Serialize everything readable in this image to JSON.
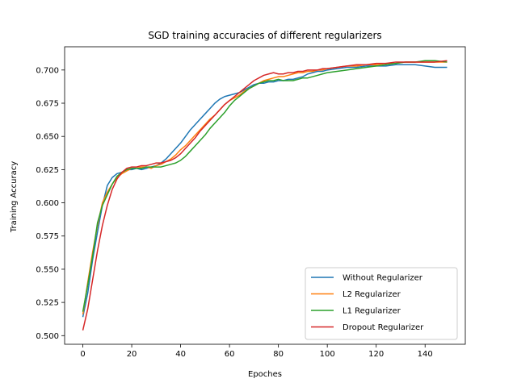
{
  "chart_data": {
    "type": "line",
    "title": "SGD training accuracies of different regularizers",
    "xlabel": "Epoches",
    "ylabel": "Training Accuracy",
    "xlim": [
      -7.45,
      156.45
    ],
    "ylim": [
      0.4935,
      0.7175
    ],
    "xticks": [
      0,
      20,
      40,
      60,
      80,
      100,
      120,
      140
    ],
    "yticks": [
      0.5,
      0.525,
      0.55,
      0.575,
      0.6,
      0.625,
      0.65,
      0.675,
      0.7
    ],
    "ytick_labels": [
      "0.500",
      "0.525",
      "0.550",
      "0.575",
      "0.600",
      "0.625",
      "0.650",
      "0.675",
      "0.700"
    ],
    "legend_position": "lower right",
    "grid": false,
    "series": [
      {
        "name": "Without Regularizer",
        "color": "#1f77b4",
        "points": [
          [
            0,
            0.514
          ],
          [
            2,
            0.532
          ],
          [
            4,
            0.557
          ],
          [
            6,
            0.578
          ],
          [
            8,
            0.598
          ],
          [
            10,
            0.613
          ],
          [
            12,
            0.619
          ],
          [
            14,
            0.622
          ],
          [
            16,
            0.623
          ],
          [
            18,
            0.625
          ],
          [
            20,
            0.625
          ],
          [
            22,
            0.626
          ],
          [
            24,
            0.625
          ],
          [
            26,
            0.626
          ],
          [
            28,
            0.627
          ],
          [
            30,
            0.628
          ],
          [
            32,
            0.63
          ],
          [
            34,
            0.633
          ],
          [
            36,
            0.637
          ],
          [
            38,
            0.641
          ],
          [
            40,
            0.645
          ],
          [
            42,
            0.65
          ],
          [
            44,
            0.655
          ],
          [
            46,
            0.659
          ],
          [
            48,
            0.663
          ],
          [
            50,
            0.667
          ],
          [
            52,
            0.671
          ],
          [
            54,
            0.675
          ],
          [
            56,
            0.678
          ],
          [
            58,
            0.68
          ],
          [
            60,
            0.681
          ],
          [
            62,
            0.682
          ],
          [
            64,
            0.683
          ],
          [
            66,
            0.685
          ],
          [
            68,
            0.687
          ],
          [
            70,
            0.689
          ],
          [
            72,
            0.69
          ],
          [
            74,
            0.69
          ],
          [
            76,
            0.691
          ],
          [
            78,
            0.691
          ],
          [
            80,
            0.692
          ],
          [
            82,
            0.692
          ],
          [
            84,
            0.693
          ],
          [
            86,
            0.693
          ],
          [
            88,
            0.694
          ],
          [
            90,
            0.695
          ],
          [
            92,
            0.697
          ],
          [
            94,
            0.698
          ],
          [
            96,
            0.699
          ],
          [
            98,
            0.699
          ],
          [
            100,
            0.7
          ],
          [
            104,
            0.701
          ],
          [
            108,
            0.702
          ],
          [
            112,
            0.702
          ],
          [
            116,
            0.703
          ],
          [
            120,
            0.703
          ],
          [
            124,
            0.703
          ],
          [
            128,
            0.704
          ],
          [
            132,
            0.704
          ],
          [
            136,
            0.704
          ],
          [
            140,
            0.703
          ],
          [
            144,
            0.702
          ],
          [
            149,
            0.702
          ]
        ]
      },
      {
        "name": "L2 Regularizer",
        "color": "#ff7f0e",
        "points": [
          [
            0,
            0.516
          ],
          [
            2,
            0.54
          ],
          [
            4,
            0.563
          ],
          [
            6,
            0.583
          ],
          [
            8,
            0.6
          ],
          [
            10,
            0.608
          ],
          [
            12,
            0.614
          ],
          [
            14,
            0.619
          ],
          [
            16,
            0.622
          ],
          [
            18,
            0.624
          ],
          [
            20,
            0.626
          ],
          [
            22,
            0.626
          ],
          [
            24,
            0.627
          ],
          [
            26,
            0.627
          ],
          [
            28,
            0.626
          ],
          [
            30,
            0.628
          ],
          [
            32,
            0.629
          ],
          [
            34,
            0.631
          ],
          [
            36,
            0.633
          ],
          [
            38,
            0.636
          ],
          [
            40,
            0.64
          ],
          [
            42,
            0.643
          ],
          [
            44,
            0.647
          ],
          [
            46,
            0.651
          ],
          [
            48,
            0.655
          ],
          [
            50,
            0.659
          ],
          [
            52,
            0.663
          ],
          [
            54,
            0.666
          ],
          [
            56,
            0.67
          ],
          [
            58,
            0.674
          ],
          [
            60,
            0.677
          ],
          [
            62,
            0.679
          ],
          [
            64,
            0.681
          ],
          [
            66,
            0.684
          ],
          [
            68,
            0.686
          ],
          [
            70,
            0.688
          ],
          [
            72,
            0.69
          ],
          [
            74,
            0.692
          ],
          [
            76,
            0.693
          ],
          [
            78,
            0.694
          ],
          [
            80,
            0.695
          ],
          [
            82,
            0.695
          ],
          [
            84,
            0.696
          ],
          [
            86,
            0.697
          ],
          [
            88,
            0.698
          ],
          [
            90,
            0.698
          ],
          [
            92,
            0.699
          ],
          [
            94,
            0.699
          ],
          [
            96,
            0.7
          ],
          [
            98,
            0.7
          ],
          [
            100,
            0.701
          ],
          [
            104,
            0.702
          ],
          [
            108,
            0.703
          ],
          [
            112,
            0.703
          ],
          [
            116,
            0.704
          ],
          [
            120,
            0.704
          ],
          [
            124,
            0.705
          ],
          [
            128,
            0.705
          ],
          [
            132,
            0.706
          ],
          [
            136,
            0.706
          ],
          [
            140,
            0.706
          ],
          [
            144,
            0.706
          ],
          [
            149,
            0.706
          ]
        ]
      },
      {
        "name": "L1 Regularizer",
        "color": "#2ca02c",
        "points": [
          [
            0,
            0.518
          ],
          [
            2,
            0.538
          ],
          [
            4,
            0.56
          ],
          [
            6,
            0.585
          ],
          [
            8,
            0.598
          ],
          [
            10,
            0.606
          ],
          [
            12,
            0.614
          ],
          [
            14,
            0.62
          ],
          [
            16,
            0.623
          ],
          [
            18,
            0.625
          ],
          [
            20,
            0.626
          ],
          [
            22,
            0.626
          ],
          [
            24,
            0.626
          ],
          [
            26,
            0.627
          ],
          [
            28,
            0.627
          ],
          [
            30,
            0.627
          ],
          [
            32,
            0.627
          ],
          [
            34,
            0.628
          ],
          [
            36,
            0.629
          ],
          [
            38,
            0.63
          ],
          [
            40,
            0.632
          ],
          [
            42,
            0.635
          ],
          [
            44,
            0.639
          ],
          [
            46,
            0.643
          ],
          [
            48,
            0.647
          ],
          [
            50,
            0.651
          ],
          [
            52,
            0.656
          ],
          [
            54,
            0.66
          ],
          [
            56,
            0.664
          ],
          [
            58,
            0.668
          ],
          [
            60,
            0.673
          ],
          [
            62,
            0.677
          ],
          [
            64,
            0.68
          ],
          [
            66,
            0.683
          ],
          [
            68,
            0.686
          ],
          [
            70,
            0.688
          ],
          [
            72,
            0.69
          ],
          [
            74,
            0.691
          ],
          [
            76,
            0.692
          ],
          [
            78,
            0.692
          ],
          [
            80,
            0.693
          ],
          [
            82,
            0.692
          ],
          [
            84,
            0.692
          ],
          [
            86,
            0.692
          ],
          [
            88,
            0.693
          ],
          [
            90,
            0.694
          ],
          [
            92,
            0.694
          ],
          [
            94,
            0.695
          ],
          [
            96,
            0.696
          ],
          [
            98,
            0.697
          ],
          [
            100,
            0.698
          ],
          [
            104,
            0.699
          ],
          [
            108,
            0.7
          ],
          [
            112,
            0.701
          ],
          [
            116,
            0.702
          ],
          [
            120,
            0.703
          ],
          [
            124,
            0.704
          ],
          [
            128,
            0.705
          ],
          [
            132,
            0.706
          ],
          [
            136,
            0.706
          ],
          [
            140,
            0.707
          ],
          [
            144,
            0.707
          ],
          [
            149,
            0.706
          ]
        ]
      },
      {
        "name": "Dropout Regularizer",
        "color": "#d62728",
        "points": [
          [
            0,
            0.504
          ],
          [
            2,
            0.52
          ],
          [
            4,
            0.542
          ],
          [
            6,
            0.564
          ],
          [
            8,
            0.583
          ],
          [
            10,
            0.598
          ],
          [
            12,
            0.61
          ],
          [
            14,
            0.618
          ],
          [
            16,
            0.623
          ],
          [
            18,
            0.626
          ],
          [
            20,
            0.627
          ],
          [
            22,
            0.627
          ],
          [
            24,
            0.628
          ],
          [
            26,
            0.628
          ],
          [
            28,
            0.629
          ],
          [
            30,
            0.63
          ],
          [
            32,
            0.63
          ],
          [
            34,
            0.631
          ],
          [
            36,
            0.632
          ],
          [
            38,
            0.634
          ],
          [
            40,
            0.637
          ],
          [
            42,
            0.641
          ],
          [
            44,
            0.645
          ],
          [
            46,
            0.649
          ],
          [
            48,
            0.654
          ],
          [
            50,
            0.658
          ],
          [
            52,
            0.662
          ],
          [
            54,
            0.666
          ],
          [
            56,
            0.67
          ],
          [
            58,
            0.674
          ],
          [
            60,
            0.677
          ],
          [
            62,
            0.68
          ],
          [
            64,
            0.683
          ],
          [
            66,
            0.686
          ],
          [
            68,
            0.689
          ],
          [
            70,
            0.692
          ],
          [
            72,
            0.694
          ],
          [
            74,
            0.696
          ],
          [
            76,
            0.697
          ],
          [
            78,
            0.698
          ],
          [
            80,
            0.697
          ],
          [
            82,
            0.697
          ],
          [
            84,
            0.698
          ],
          [
            86,
            0.698
          ],
          [
            88,
            0.699
          ],
          [
            90,
            0.699
          ],
          [
            92,
            0.7
          ],
          [
            94,
            0.7
          ],
          [
            96,
            0.7
          ],
          [
            98,
            0.701
          ],
          [
            100,
            0.701
          ],
          [
            104,
            0.702
          ],
          [
            108,
            0.703
          ],
          [
            112,
            0.704
          ],
          [
            116,
            0.704
          ],
          [
            120,
            0.705
          ],
          [
            124,
            0.705
          ],
          [
            128,
            0.706
          ],
          [
            132,
            0.706
          ],
          [
            136,
            0.706
          ],
          [
            140,
            0.706
          ],
          [
            144,
            0.706
          ],
          [
            149,
            0.707
          ]
        ]
      }
    ]
  }
}
